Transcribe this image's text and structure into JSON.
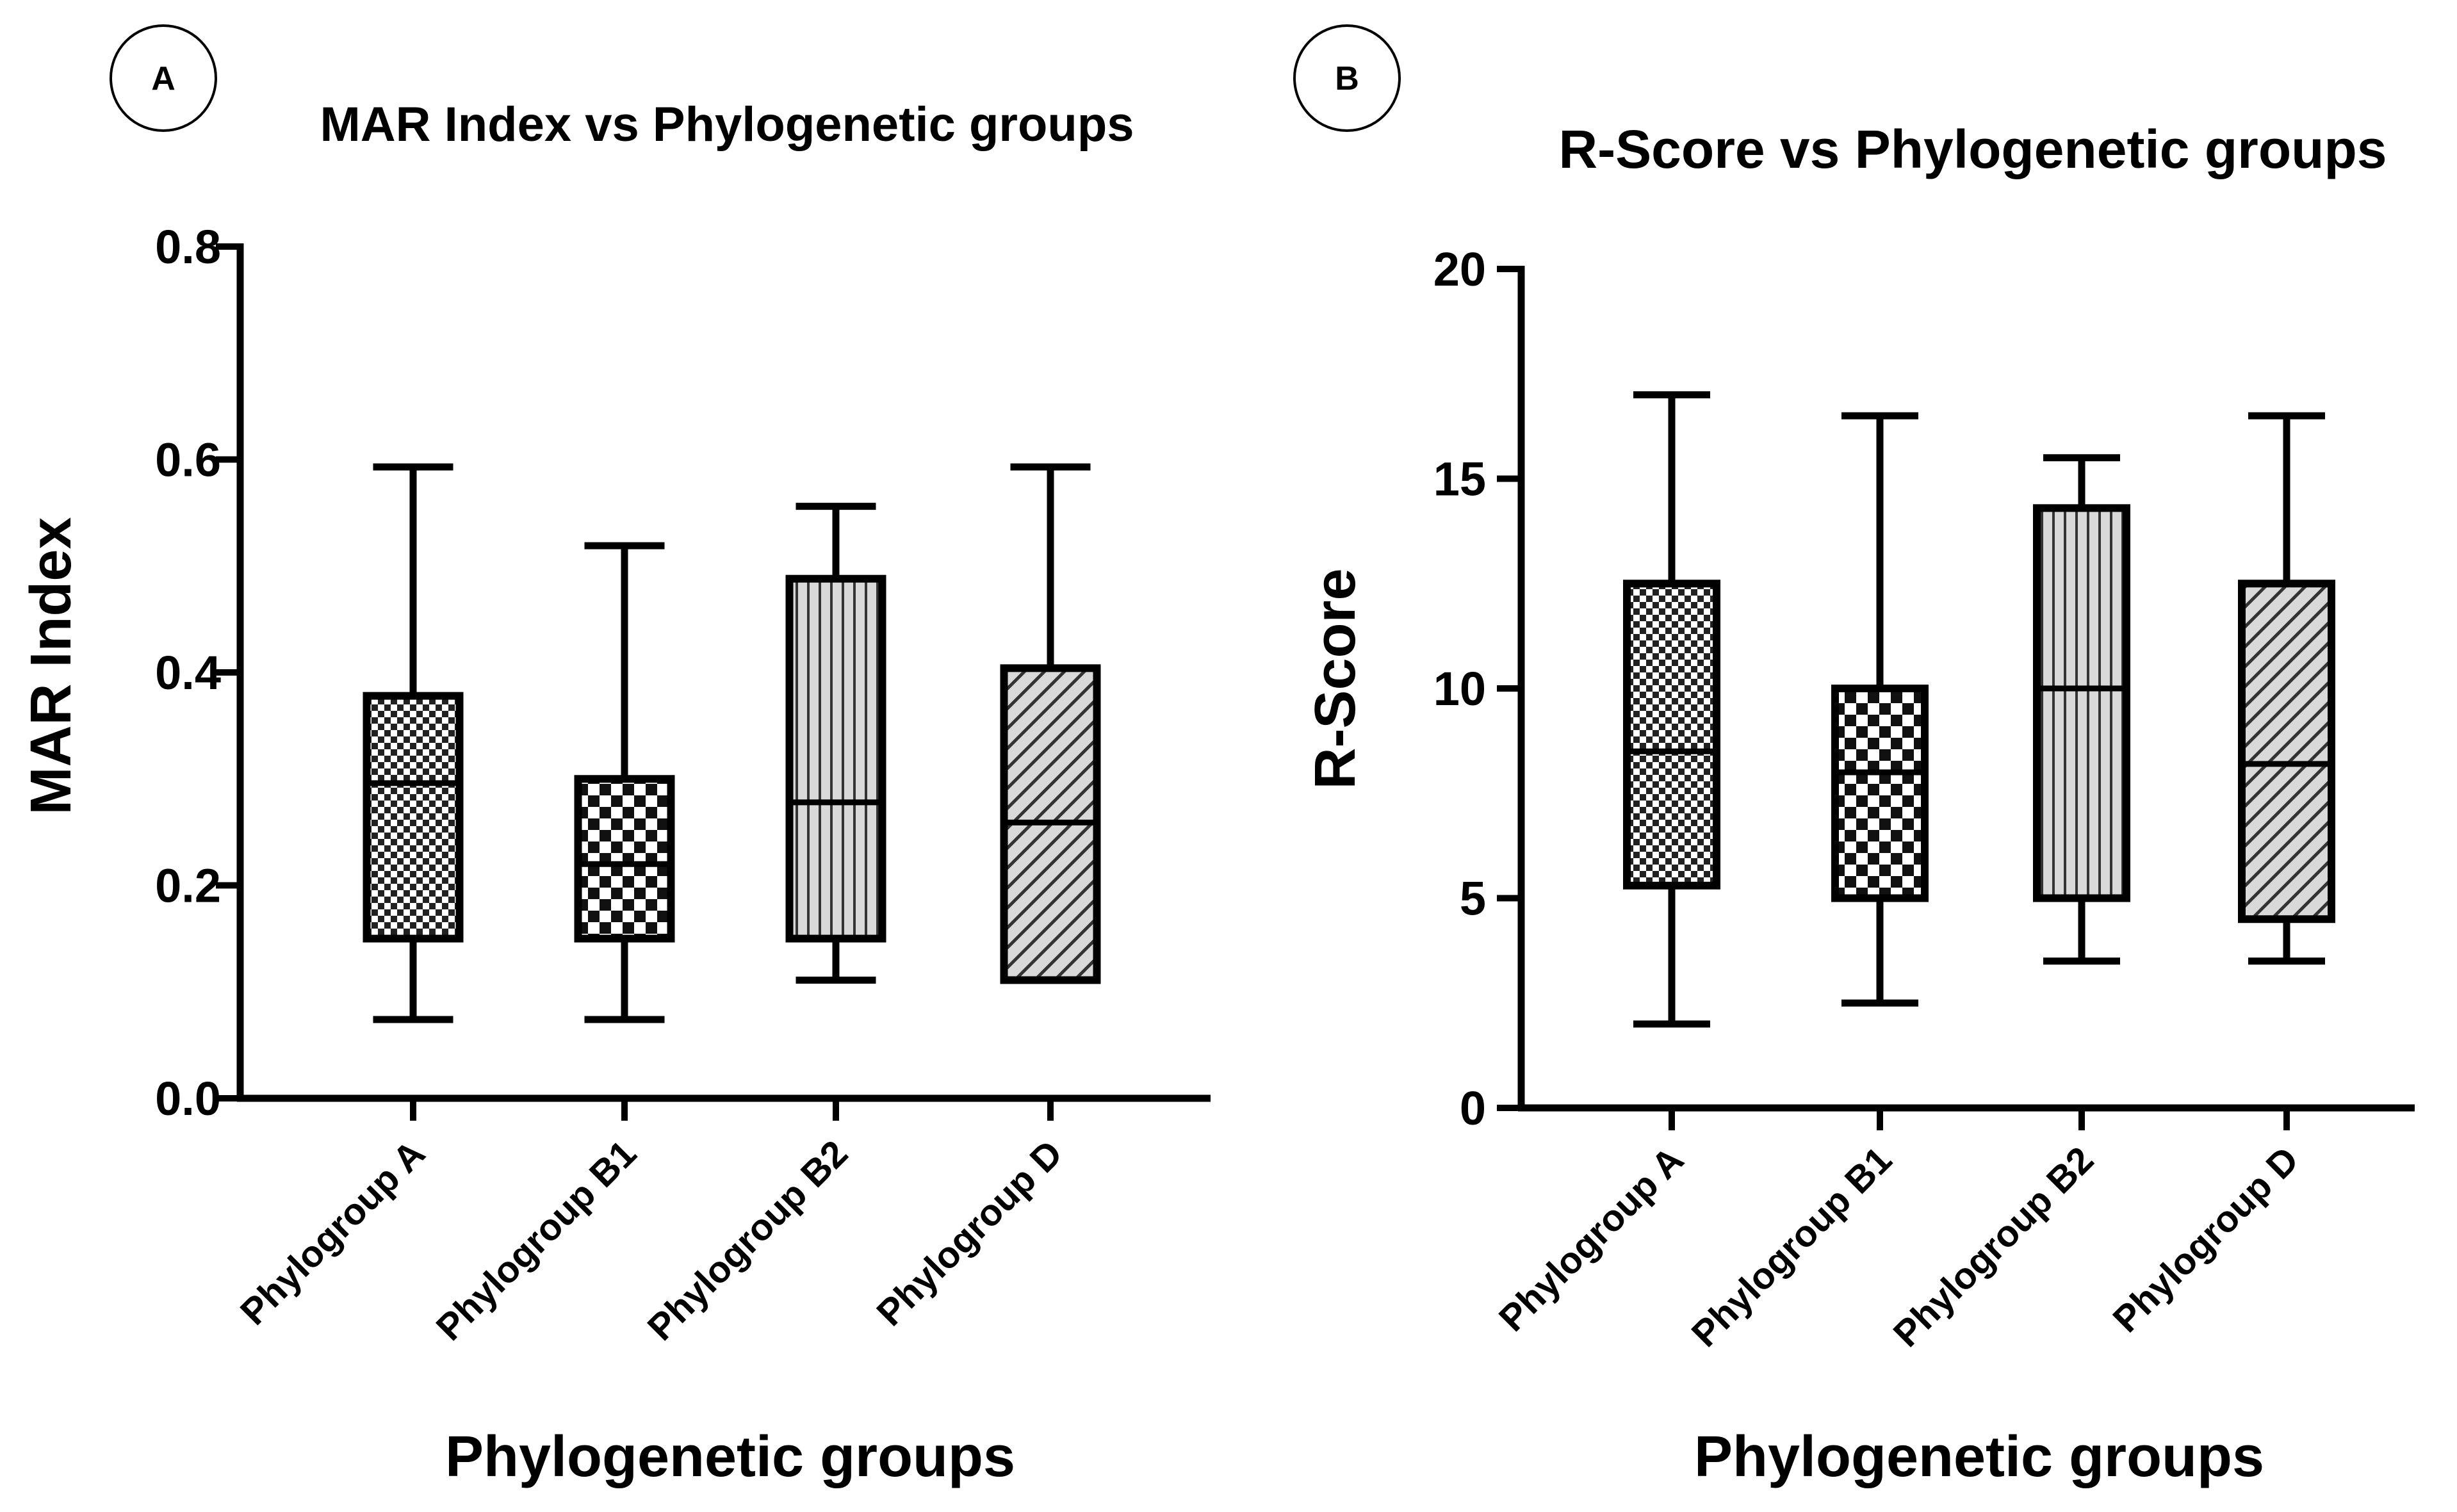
{
  "chart_data": [
    {
      "panel_label": "A",
      "type": "boxplot",
      "title": "MAR Index vs Phylogenetic groups",
      "xlabel": "Phylogenetic groups",
      "ylabel": "MAR Index",
      "ylim": [
        0,
        0.8
      ],
      "yticks": [
        0.0,
        0.2,
        0.4,
        0.6,
        0.8
      ],
      "ytick_labels": [
        "0.0",
        "0.2",
        "0.4",
        "0.6",
        "0.8"
      ],
      "categories": [
        "Phylogroup A",
        "Phylogroup B1",
        "Phylogroup B2",
        "Phylogroup D"
      ],
      "boxes": [
        {
          "category": "Phylogroup A",
          "min": 0.074,
          "q1": 0.15,
          "median": 0.296,
          "q3": 0.378,
          "max": 0.593,
          "pattern": "fine-check"
        },
        {
          "category": "Phylogroup B1",
          "min": 0.074,
          "q1": 0.15,
          "median": 0.22,
          "q3": 0.3,
          "max": 0.519,
          "pattern": "checker"
        },
        {
          "category": "Phylogroup B2",
          "min": 0.111,
          "q1": 0.15,
          "median": 0.278,
          "q3": 0.488,
          "max": 0.556,
          "pattern": "vertical-lines"
        },
        {
          "category": "Phylogroup D",
          "min": 0.111,
          "q1": 0.111,
          "median": 0.259,
          "q3": 0.404,
          "max": 0.593,
          "pattern": "diagonal-lines"
        }
      ]
    },
    {
      "panel_label": "B",
      "type": "boxplot",
      "title": "R-Score vs Phylogenetic groups",
      "xlabel": "Phylogenetic groups",
      "ylabel": "R-Score",
      "ylim": [
        0,
        20
      ],
      "yticks": [
        0,
        5,
        10,
        15,
        20
      ],
      "ytick_labels": [
        "0",
        "5",
        "10",
        "15",
        "20"
      ],
      "categories": [
        "Phylogroup A",
        "Phylogroup B1",
        "Phylogroup B2",
        "Phylogroup D"
      ],
      "boxes": [
        {
          "category": "Phylogroup A",
          "min": 2.0,
          "q1": 5.3,
          "median": 8.5,
          "q3": 12.5,
          "max": 17.0,
          "pattern": "fine-check"
        },
        {
          "category": "Phylogroup B1",
          "min": 2.5,
          "q1": 5.0,
          "median": 8.0,
          "q3": 10.0,
          "max": 16.5,
          "pattern": "checker"
        },
        {
          "category": "Phylogroup B2",
          "min": 3.5,
          "q1": 5.0,
          "median": 10.0,
          "q3": 14.3,
          "max": 15.5,
          "pattern": "vertical-lines"
        },
        {
          "category": "Phylogroup D",
          "min": 3.5,
          "q1": 4.5,
          "median": 8.2,
          "q3": 12.5,
          "max": 16.5,
          "pattern": "diagonal-lines"
        }
      ]
    }
  ]
}
